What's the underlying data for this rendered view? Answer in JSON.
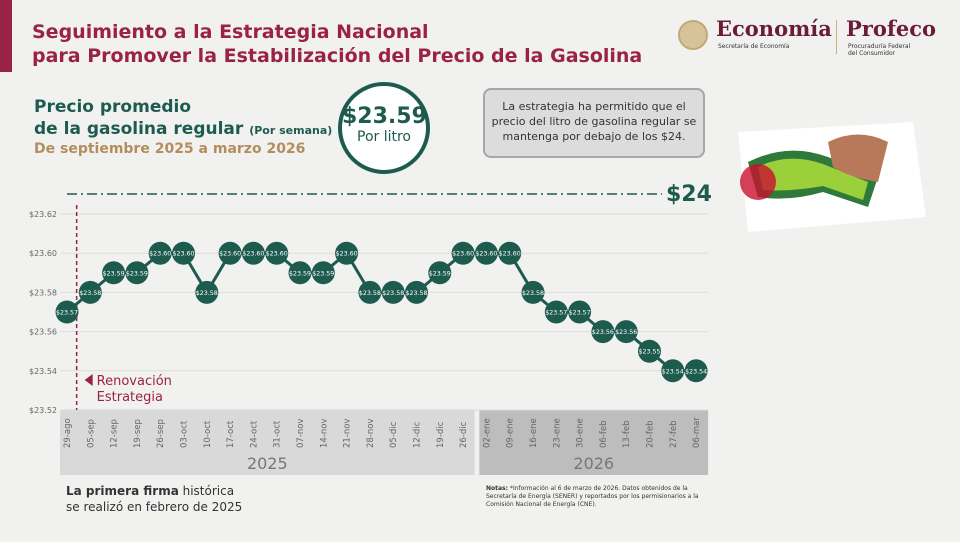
{
  "header": {
    "title_line1": "Seguimiento a la Estrategia Nacional",
    "title_line2": "para Promover la Estabilización del Precio de la Gasolina"
  },
  "logos": {
    "economia": "Economía",
    "economia_sub": "Secretaría de Economía",
    "profeco": "Profeco",
    "profeco_sub1": "Procuraduría Federal",
    "profeco_sub2": "del Consumidor"
  },
  "summary": {
    "line1": "Precio promedio",
    "line2": "de la gasolina regular",
    "line2_note": "(Por semana)",
    "period": "De septiembre 2025 a marzo 2026",
    "price": "$23.59",
    "price_unit": "Por litro",
    "callout": "La estrategia ha permitido que el precio del litro de gasolina regular se mantenga por debajo de los $24."
  },
  "chart_data": {
    "type": "line",
    "title": "",
    "categories": [
      "29-ago",
      "05-sep",
      "12-sep",
      "19-sep",
      "26-sep",
      "03-oct",
      "10-oct",
      "17-oct",
      "24-oct",
      "31-oct",
      "07-nov",
      "14-nov",
      "21-nov",
      "28-nov",
      "05-dic",
      "12-dic",
      "19-dic",
      "26-dic",
      "02-ene",
      "09-ene",
      "16-ene",
      "23-ene",
      "30-ene",
      "06-feb",
      "13-feb",
      "20-feb",
      "27-feb",
      "06-mar"
    ],
    "values": [
      23.57,
      23.58,
      23.59,
      23.59,
      23.6,
      23.6,
      23.58,
      23.6,
      23.6,
      23.6,
      23.59,
      23.59,
      23.6,
      23.58,
      23.58,
      23.58,
      23.59,
      23.6,
      23.6,
      23.6,
      23.58,
      23.57,
      23.57,
      23.56,
      23.56,
      23.55,
      23.54,
      23.54
    ],
    "ylim": [
      23.52,
      23.62
    ],
    "yticks": [
      "$23.62",
      "$23.60",
      "$23.58",
      "$23.56",
      "$23.54",
      "$23.52"
    ],
    "grid": true,
    "year_groups": [
      {
        "label": "2025",
        "count": 18
      },
      {
        "label": "2026",
        "count": 10
      }
    ],
    "reference_line": {
      "label": "$24",
      "value": 24
    },
    "annotation": {
      "line1": "Renovación",
      "line2": "Estrategia",
      "category": "05-sep"
    },
    "colors": {
      "marker": "#1e5b4f",
      "annotation": "#9b2247",
      "reference": "#1e5b4f"
    }
  },
  "footer": {
    "first_bold": "La primera firma",
    "first_rest": " histórica",
    "first_line2": "se realizó en febrero de 2025",
    "notes_label": "Notas:",
    "notes_text": " *Información al 6 de marzo de 2026. Datos obtenidos de la Secretaría de Energía (SENER) y reportados por los permisionarios a la Comisión Nacional de Energía (CNE)."
  }
}
